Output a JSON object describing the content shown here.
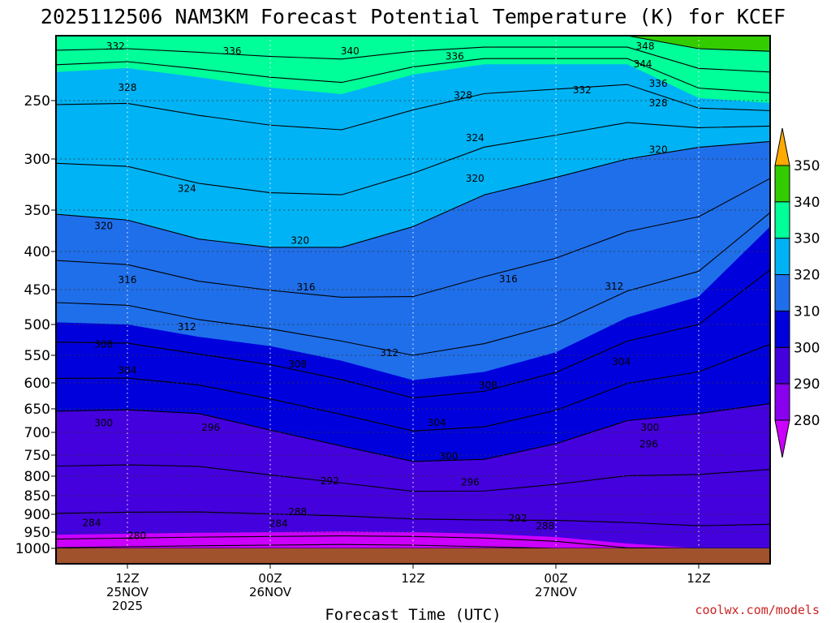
{
  "title": "2025112506 NAM3KM Forecast Potential Temperature (K) for KCEF",
  "credit": "coolwx.com/models",
  "colors": {
    "credit": "#cc2222",
    "ground": "#a0522d",
    "bands": [
      "#cc00ff",
      "#8800ee",
      "#4400dd",
      "#0000dd",
      "#1f6fea",
      "#00b3f5",
      "#00ff99",
      "#33cc00",
      "#ffff00",
      "#ffaa00"
    ]
  },
  "chart_data": {
    "type": "contour",
    "title": "2025112506 NAM3KM Forecast Potential Temperature (K) for KCEF",
    "xlabel": "Forecast Time (UTC)",
    "ylabel": "",
    "x_range_hours": [
      0,
      60
    ],
    "y_range_mb": [
      1000,
      200
    ],
    "y_ticks": [
      250,
      300,
      350,
      400,
      450,
      500,
      550,
      600,
      650,
      700,
      750,
      800,
      850,
      900,
      950,
      1000
    ],
    "x_ticks": [
      {
        "hour": 6,
        "line1": "12Z",
        "line2": "25NOV",
        "line3": "2025"
      },
      {
        "hour": 18,
        "line1": "00Z",
        "line2": "26NOV",
        "line3": ""
      },
      {
        "hour": 30,
        "line1": "12Z",
        "line2": "",
        "line3": ""
      },
      {
        "hour": 42,
        "line1": "00Z",
        "line2": "27NOV",
        "line3": ""
      },
      {
        "hour": 54,
        "line1": "12Z",
        "line2": "",
        "line3": ""
      }
    ],
    "colorbar": {
      "levels": [
        280,
        290,
        300,
        310,
        320,
        330,
        340,
        350
      ],
      "units": "K"
    },
    "contour_levels": [
      280,
      284,
      288,
      292,
      296,
      300,
      304,
      308,
      312,
      316,
      320,
      324,
      328,
      332,
      336,
      340,
      344,
      348
    ],
    "times": [
      0,
      6,
      12,
      18,
      24,
      30,
      36,
      42,
      48,
      54,
      60
    ],
    "isentropes": [
      {
        "theta": 290,
        "p": [
          958,
          955,
          952,
          950,
          948,
          950,
          955,
          965,
          985,
          1000,
          1000
        ]
      },
      {
        "theta": 300,
        "p": [
          655,
          652,
          660,
          695,
          730,
          765,
          760,
          725,
          675,
          660,
          640
        ]
      },
      {
        "theta": 310,
        "p": [
          497,
          500,
          520,
          535,
          560,
          595,
          580,
          545,
          490,
          460,
          370
        ]
      },
      {
        "theta": 320,
        "p": [
          355,
          362,
          385,
          395,
          395,
          370,
          335,
          318,
          300,
          290,
          285
        ]
      },
      {
        "theta": 330,
        "p": [
          228,
          225,
          232,
          240,
          245,
          230,
          222,
          222,
          222,
          248,
          252
        ]
      },
      {
        "theta": 340,
        "p": [
          200,
          200,
          200,
          200,
          200,
          200,
          200,
          200,
          200,
          210,
          212
        ]
      }
    ],
    "contour_labels": [
      {
        "text": "332",
        "hour": 5,
        "p": 208
      },
      {
        "text": "336",
        "hour": 14.8,
        "p": 212
      },
      {
        "text": "340",
        "hour": 24.7,
        "p": 212
      },
      {
        "text": "336",
        "hour": 33.5,
        "p": 216
      },
      {
        "text": "348",
        "hour": 49.5,
        "p": 208
      },
      {
        "text": "344",
        "hour": 49.3,
        "p": 222
      },
      {
        "text": "336",
        "hour": 50.6,
        "p": 237
      },
      {
        "text": "328",
        "hour": 6,
        "p": 240
      },
      {
        "text": "328",
        "hour": 34.2,
        "p": 246
      },
      {
        "text": "332",
        "hour": 44.2,
        "p": 242
      },
      {
        "text": "328",
        "hour": 50.6,
        "p": 252
      },
      {
        "text": "324",
        "hour": 35.2,
        "p": 282
      },
      {
        "text": "320",
        "hour": 50.6,
        "p": 292
      },
      {
        "text": "324",
        "hour": 11,
        "p": 329
      },
      {
        "text": "320",
        "hour": 35.2,
        "p": 319
      },
      {
        "text": "320",
        "hour": 4,
        "p": 369
      },
      {
        "text": "320",
        "hour": 20.5,
        "p": 387
      },
      {
        "text": "316",
        "hour": 6,
        "p": 437
      },
      {
        "text": "316",
        "hour": 21,
        "p": 447
      },
      {
        "text": "316",
        "hour": 38,
        "p": 436
      },
      {
        "text": "312",
        "hour": 46.9,
        "p": 446
      },
      {
        "text": "312",
        "hour": 11,
        "p": 504
      },
      {
        "text": "312",
        "hour": 28,
        "p": 546
      },
      {
        "text": "308",
        "hour": 4,
        "p": 532
      },
      {
        "text": "308",
        "hour": 20.3,
        "p": 566
      },
      {
        "text": "308",
        "hour": 36.3,
        "p": 605
      },
      {
        "text": "304",
        "hour": 6,
        "p": 577
      },
      {
        "text": "304",
        "hour": 47.5,
        "p": 562
      },
      {
        "text": "304",
        "hour": 32,
        "p": 679
      },
      {
        "text": "300",
        "hour": 4,
        "p": 680
      },
      {
        "text": "300",
        "hour": 49.9,
        "p": 690
      },
      {
        "text": "300",
        "hour": 33,
        "p": 753
      },
      {
        "text": "296",
        "hour": 13,
        "p": 690
      },
      {
        "text": "296",
        "hour": 34.8,
        "p": 816
      },
      {
        "text": "296",
        "hour": 49.8,
        "p": 726
      },
      {
        "text": "292",
        "hour": 23,
        "p": 812
      },
      {
        "text": "292",
        "hour": 38.8,
        "p": 911
      },
      {
        "text": "288",
        "hour": 20.3,
        "p": 894
      },
      {
        "text": "288",
        "hour": 41.1,
        "p": 933
      },
      {
        "text": "284",
        "hour": 3,
        "p": 924
      },
      {
        "text": "284",
        "hour": 18.7,
        "p": 926
      },
      {
        "text": "280",
        "hour": 6.8,
        "p": 961
      }
    ]
  }
}
